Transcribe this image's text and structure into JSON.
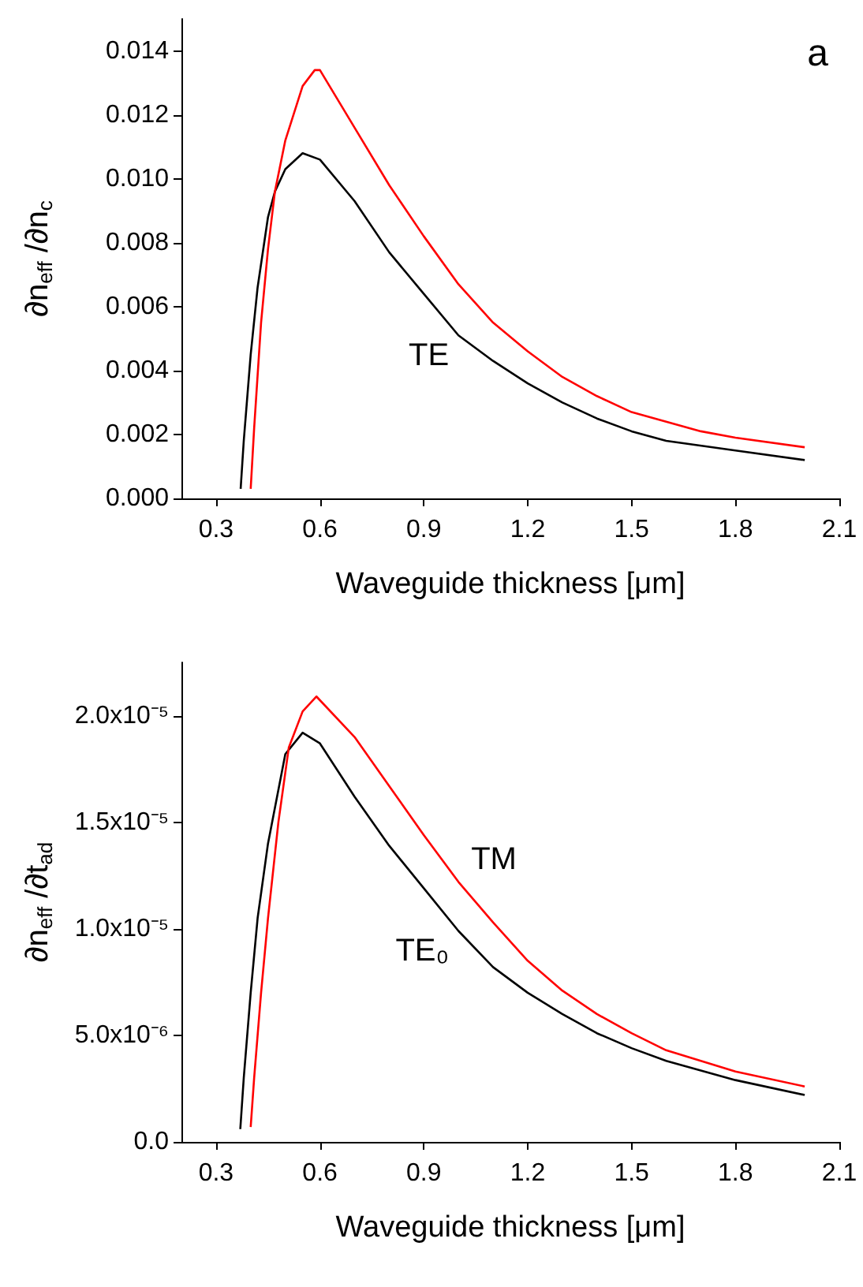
{
  "chart_data": [
    {
      "type": "line",
      "xlabel": "Waveguide thickness [μm]",
      "ylabel": "∂n$_{eff}$ /∂n$_{c}$",
      "xlim": [
        0.2,
        2.1
      ],
      "xticks": [
        0.3,
        0.6,
        0.9,
        1.2,
        1.5,
        1.8,
        2.1
      ],
      "ylim": [
        0,
        0.015
      ],
      "yticks": [
        {
          "value": 0,
          "label": "0.000"
        },
        {
          "value": 0.002,
          "label": "0.002"
        },
        {
          "value": 0.004,
          "label": "0.004"
        },
        {
          "value": 0.006,
          "label": "0.006"
        },
        {
          "value": 0.008,
          "label": "0.008"
        },
        {
          "value": 0.01,
          "label": "0.010"
        },
        {
          "value": 0.012,
          "label": "0.012"
        },
        {
          "value": 0.014,
          "label": "0.014"
        }
      ],
      "marker": "none",
      "line_style": "solid",
      "grid": false,
      "series": [
        {
          "name": "TE",
          "color": "#000000",
          "x": [
            0.371,
            0.38,
            0.4,
            0.42,
            0.45,
            0.47,
            0.5,
            0.55,
            0.6,
            0.7,
            0.8,
            0.9,
            1.0,
            1.1,
            1.2,
            1.3,
            1.4,
            1.5,
            1.6,
            1.8,
            2.0
          ],
          "values": [
            0.0003,
            0.0018,
            0.0045,
            0.0066,
            0.0088,
            0.0096,
            0.0103,
            0.0108,
            0.0106,
            0.0093,
            0.0077,
            0.0064,
            0.0051,
            0.0043,
            0.0036,
            0.003,
            0.0025,
            0.0021,
            0.0018,
            0.0015,
            0.0012
          ]
        },
        {
          "color": "#ff0000",
          "x": [
            0.4,
            0.41,
            0.43,
            0.45,
            0.47,
            0.5,
            0.55,
            0.585,
            0.6,
            0.7,
            0.8,
            0.9,
            1.0,
            1.1,
            1.2,
            1.3,
            1.4,
            1.5,
            1.6,
            1.7,
            1.8,
            2.0
          ],
          "values": [
            0.0003,
            0.0022,
            0.0055,
            0.0078,
            0.0096,
            0.0112,
            0.0129,
            0.0134,
            0.0134,
            0.0116,
            0.0098,
            0.0082,
            0.0067,
            0.0055,
            0.0046,
            0.0038,
            0.0032,
            0.0027,
            0.0024,
            0.0021,
            0.0019,
            0.0016
          ]
        }
      ],
      "annotations": [
        "a"
      ]
    },
    {
      "type": "line",
      "xlabel": "Waveguide thickness [μm]",
      "ylabel": "∂n$_{eff}$ /∂t$_{ad}$",
      "xlim": [
        0.2,
        2.1
      ],
      "xticks": [
        0.3,
        0.6,
        0.9,
        1.2,
        1.5,
        1.8,
        2.1
      ],
      "ylim": [
        0,
        2.25e-05
      ],
      "yticks": [
        {
          "value": 0,
          "label": "0.0"
        },
        {
          "value": 5e-06,
          "label": "5.0x10⁻⁶"
        },
        {
          "value": 1e-05,
          "label": "1.0x10⁻⁵"
        },
        {
          "value": 1.5e-05,
          "label": "1.5x10⁻⁵"
        },
        {
          "value": 2e-05,
          "label": "2.0x10⁻⁵"
        }
      ],
      "marker": "none",
      "line_style": "solid",
      "grid": false,
      "series": [
        {
          "name": "TE₀",
          "color": "#000000",
          "x": [
            0.37,
            0.38,
            0.4,
            0.42,
            0.45,
            0.5,
            0.55,
            0.6,
            0.7,
            0.8,
            0.9,
            1.0,
            1.1,
            1.2,
            1.3,
            1.4,
            1.5,
            1.6,
            1.8,
            2.0
          ],
          "values": [
            6e-07,
            3e-06,
            7e-06,
            1.05e-05,
            1.4e-05,
            1.82e-05,
            1.92e-05,
            1.87e-05,
            1.62e-05,
            1.39e-05,
            1.19e-05,
            9.9e-06,
            8.2e-06,
            7e-06,
            6e-06,
            5.1e-06,
            4.4e-06,
            3.8e-06,
            2.9e-06,
            2.2e-06
          ]
        },
        {
          "name": "TM",
          "color": "#ff0000",
          "x": [
            0.4,
            0.41,
            0.43,
            0.45,
            0.48,
            0.51,
            0.55,
            0.59,
            0.7,
            0.8,
            0.9,
            1.0,
            1.1,
            1.2,
            1.3,
            1.4,
            1.5,
            1.6,
            1.8,
            2.0
          ],
          "values": [
            7e-07,
            3e-06,
            7e-06,
            1.05e-05,
            1.5e-05,
            1.85e-05,
            2.02e-05,
            2.09e-05,
            1.9e-05,
            1.67e-05,
            1.44e-05,
            1.22e-05,
            1.03e-05,
            8.5e-06,
            7.1e-06,
            6e-06,
            5.1e-06,
            4.3e-06,
            3.3e-06,
            2.6e-06
          ]
        }
      ]
    }
  ]
}
